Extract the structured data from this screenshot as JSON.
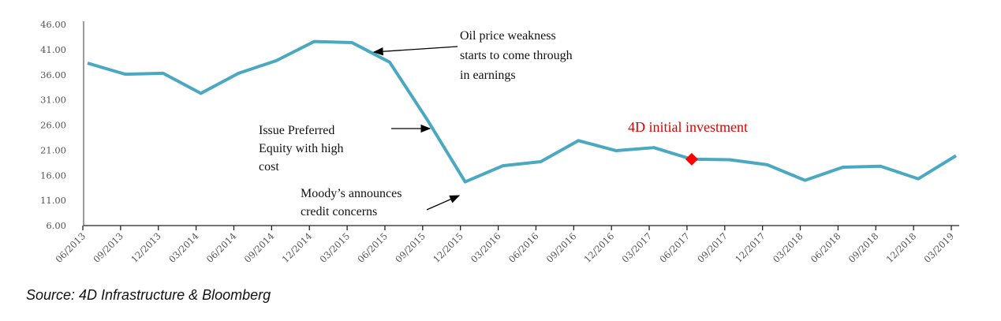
{
  "chart_data": {
    "type": "line",
    "title": "",
    "xlabel": "",
    "ylabel": "",
    "ylim": [
      6,
      46
    ],
    "yticks": [
      "46.00",
      "41.00",
      "36.00",
      "31.00",
      "26.00",
      "21.00",
      "16.00",
      "11.00",
      "6.00"
    ],
    "categories": [
      "06/2013",
      "09/2013",
      "12/2013",
      "03/2014",
      "06/2014",
      "09/2014",
      "12/2014",
      "03/2015",
      "06/2015",
      "09/2015",
      "12/2015",
      "03/2016",
      "06/2016",
      "09/2016",
      "12/2016",
      "03/2017",
      "06/2017",
      "09/2017",
      "12/2017",
      "03/2018",
      "06/2018",
      "09/2018",
      "12/2018",
      "03/2019"
    ],
    "series": [
      {
        "values": [
          38.3,
          36.1,
          36.3,
          32.3,
          36.3,
          38.8,
          42.6,
          42.4,
          38.5,
          27.0,
          14.7,
          17.9,
          18.7,
          22.9,
          20.9,
          21.5,
          19.2,
          19.1,
          18.1,
          15.0,
          17.6,
          17.8,
          15.3,
          19.9
        ],
        "color": "#4aa8c0"
      }
    ],
    "highlight": {
      "category": "06/2017",
      "value": 19.2,
      "marker": "diamond",
      "color": "#ff0000"
    },
    "grid": false,
    "annotations": [
      {
        "lines": [
          "Oil price weakness",
          "starts to come through",
          "in earnings"
        ],
        "points_to": "03/2015-06/2015"
      },
      {
        "lines": [
          "Issue Preferred",
          "Equity with  high",
          "cost"
        ],
        "points_to": "09/2015"
      },
      {
        "lines": [
          "Moody’s announces",
          "credit concerns"
        ],
        "points_to": "12/2015"
      },
      {
        "lines": [
          "4D initial investment"
        ],
        "color": "#e00000",
        "points_to": "06/2017"
      }
    ]
  },
  "source": "Source: 4D Infrastructure & Bloomberg"
}
